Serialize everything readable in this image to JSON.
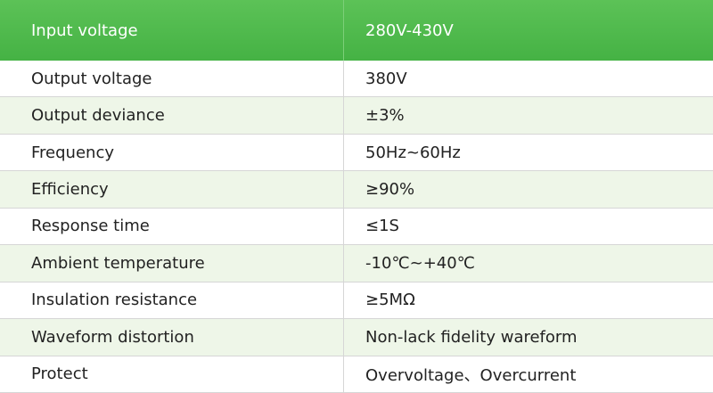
{
  "table": {
    "header": [
      "Input voltage",
      "280V-430V"
    ],
    "rows": [
      [
        "Output voltage",
        "380V"
      ],
      [
        "Output deviance",
        "±3%"
      ],
      [
        "Frequency",
        "50Hz~60Hz"
      ],
      [
        "Efficiency",
        "≥90%"
      ],
      [
        "Response time",
        "≤1S"
      ],
      [
        "Ambient temperature",
        "-10℃~+40℃"
      ],
      [
        "Insulation resistance",
        "≥5MΩ"
      ],
      [
        "Waveform distortion",
        "Non-lack fidelity wareform"
      ],
      [
        "Protect",
        "Overvoltage、Overcurrent"
      ]
    ]
  }
}
